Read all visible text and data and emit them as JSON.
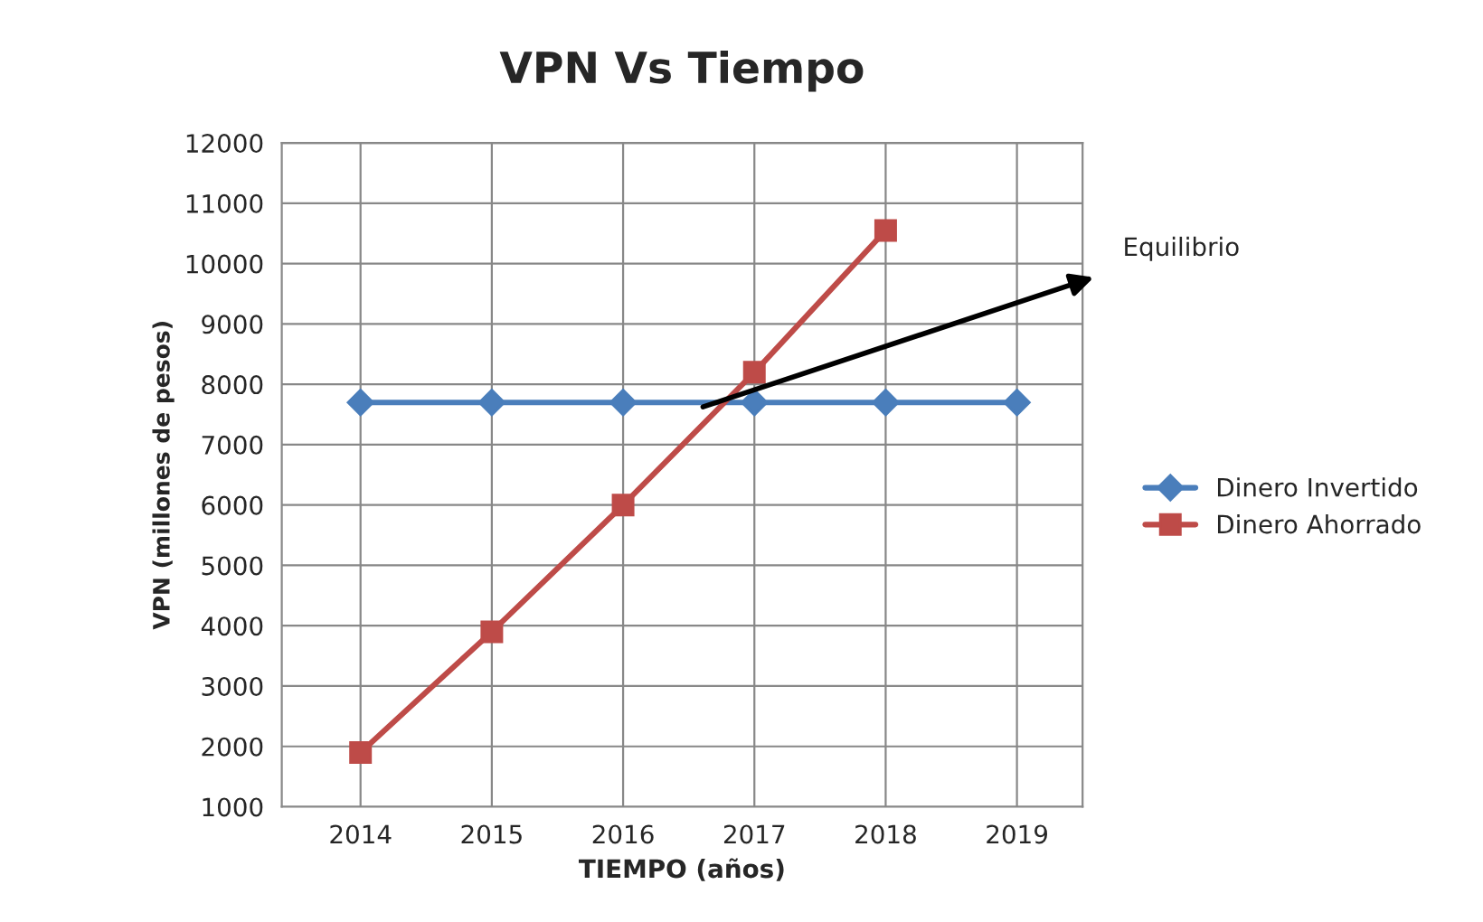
{
  "chart_data": {
    "type": "line",
    "title": "VPN Vs Tiempo",
    "xlabel": "TIEMPO (años)",
    "ylabel": "VPN (millones de pesos)",
    "categories": [
      "2014",
      "2015",
      "2016",
      "2017",
      "2018",
      "2019"
    ],
    "series": [
      {
        "name": "Dinero Invertido",
        "color": "#4a7ebb",
        "marker": "diamond",
        "values": [
          7700,
          7700,
          7700,
          7700,
          7700,
          7700
        ]
      },
      {
        "name": "Dinero Ahorrado",
        "color": "#be4b48",
        "marker": "square",
        "values": [
          1900,
          3900,
          6000,
          8200,
          10550,
          null
        ]
      }
    ],
    "ylim": [
      1000,
      12000
    ],
    "yticks": [
      1000,
      2000,
      3000,
      4000,
      5000,
      6000,
      7000,
      8000,
      9000,
      10000,
      11000,
      12000
    ],
    "grid": true,
    "legend": "right",
    "line_style": "solid",
    "annotations": [
      "Equilibrio"
    ]
  }
}
